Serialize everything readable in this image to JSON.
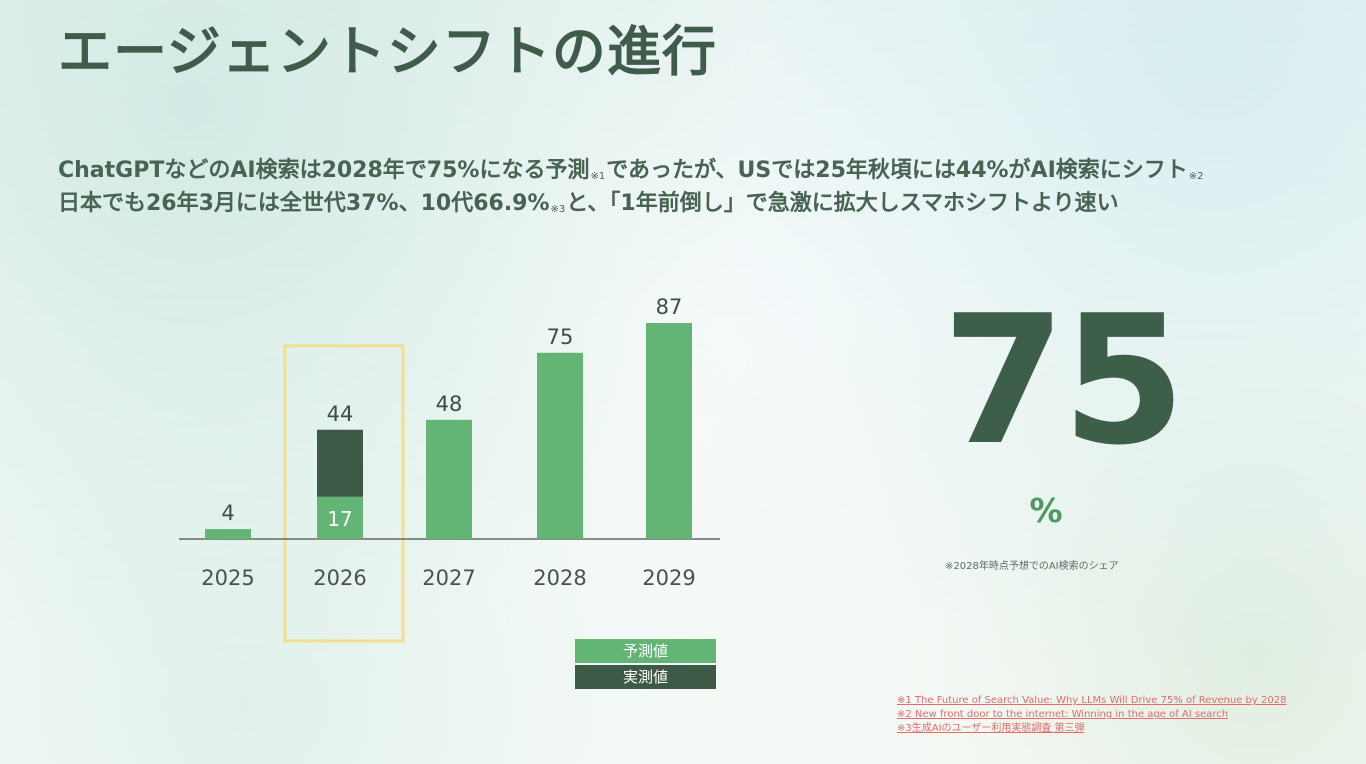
{
  "slide": {
    "title": "エージェントシフトの進行",
    "subtitle": {
      "line1_prefix": "ChatGPTなどのAI検索は2028年で75%になる予測",
      "line1_mark1": "※1",
      "line1_middle": "であったが、USでは25年秋頃には44%がAI検索にシフト",
      "line1_mark2": "※2",
      "line2_prefix": "日本でも26年3月には全世代37%、10代66.9%",
      "line2_mark": "※3",
      "line2_suffix": "と、「1年前倒し」で急激に拡大しスマホシフトより速い"
    },
    "highlight": {
      "value": "75",
      "unit": "%",
      "note": "※2028年時点予想でのAI検索のシェア"
    },
    "legend": [
      {
        "label": "予測値",
        "color": "#63b576"
      },
      {
        "label": "実測値",
        "color": "#3c5a46"
      }
    ],
    "sources": [
      "※1 The Future of Search Value: Why LLMs Will Drive 75% of Revenue by 2028",
      "※2 New front door to the internet: Winning in the age of AI search",
      "※3生成AIのユーザー利用実態調査 第三弾"
    ]
  },
  "chart_data": {
    "type": "bar",
    "categories": [
      "2025",
      "2026",
      "2027",
      "2028",
      "2029"
    ],
    "series": [
      {
        "name": "予測値",
        "values": [
          4,
          17,
          48,
          75,
          87
        ],
        "color": "#63b576"
      },
      {
        "name": "実測値",
        "values": [
          null,
          27,
          null,
          null,
          null
        ],
        "color": "#3c5a46"
      }
    ],
    "total_labels": [
      "4",
      "44",
      "48",
      "75",
      "87"
    ],
    "segment_labels": [
      null,
      "17",
      null,
      null,
      null
    ],
    "highlight_category": "2026",
    "highlight_color": "#f2df8f",
    "ylim": [
      0,
      100
    ],
    "grid": false,
    "legend_position": "bottom-center"
  }
}
